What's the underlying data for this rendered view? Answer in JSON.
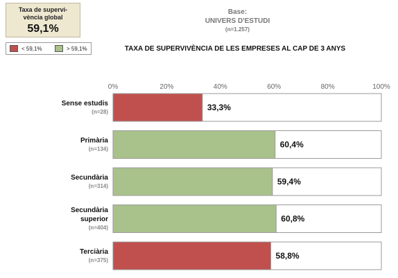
{
  "global_box": {
    "label": "Taxa de supervi-vència global",
    "label_line1": "Taxa de supervi-",
    "label_line2": "vència global",
    "value": "59,1%"
  },
  "legend": {
    "items": [
      {
        "label": "< 59,1%",
        "color": "#c0504d"
      },
      {
        "label": "> 59,1%",
        "color": "#a9c18b"
      }
    ]
  },
  "base": {
    "label": "Base:",
    "universe": "UNIVERS D'ESTUDI",
    "n": "(n=1.257)"
  },
  "chart_data": {
    "type": "bar",
    "orientation": "horizontal",
    "title": "TAXA DE SUPERVIVÈNCIA DE LES EMPRESES AL CAP DE 3 ANYS",
    "x_ticks": [
      "0%",
      "20%",
      "40%",
      "60%",
      "80%",
      "100%"
    ],
    "xlim": [
      0,
      100
    ],
    "categories": [
      {
        "label": [
          "Sense estudis"
        ],
        "n": "(n=28)",
        "value": 33.3,
        "value_label": "33,3%",
        "group": "< 59,1%"
      },
      {
        "label": [
          "Primària"
        ],
        "n": "(n=134)",
        "value": 60.4,
        "value_label": "60,4%",
        "group": "> 59,1%"
      },
      {
        "label": [
          "Secundària"
        ],
        "n": "(n=314)",
        "value": 59.4,
        "value_label": "59,4%",
        "group": "> 59,1%"
      },
      {
        "label": [
          "Secundària",
          "superior"
        ],
        "n": "(n=404)",
        "value": 60.8,
        "value_label": "60,8%",
        "group": "> 59,1%"
      },
      {
        "label": [
          "Terciària"
        ],
        "n": "(n=375)",
        "value": 58.8,
        "value_label": "58,8%",
        "group": "< 59,1%"
      }
    ],
    "colors": {
      "< 59,1%": "#c0504d",
      "> 59,1%": "#a9c18b"
    },
    "bar_remainder_color": "#ffffff",
    "grid": false,
    "legend_position": "top-left"
  }
}
